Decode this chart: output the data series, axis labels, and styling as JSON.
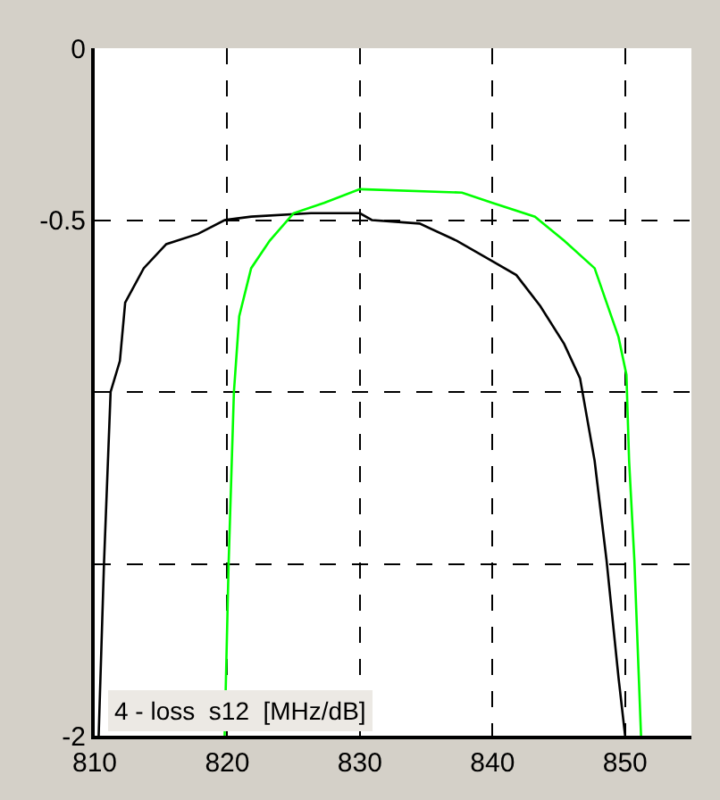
{
  "chart_data": {
    "type": "line",
    "series": [
      {
        "color": "#000000",
        "x": [
          810.3,
          810.7,
          811.2,
          811.9,
          812.3,
          813.7,
          815.4,
          817.8,
          819.8,
          821.8,
          826.3,
          830,
          830.9,
          834.5,
          837.3,
          840,
          841.8,
          843.6,
          845.4,
          846.6,
          847.7,
          848.6,
          849.5,
          850
        ],
        "values": [
          -2,
          -1.5,
          -1,
          -0.91,
          -0.74,
          -0.64,
          -0.57,
          -0.54,
          -0.5,
          -0.49,
          -0.48,
          -0.48,
          -0.5,
          -0.51,
          -0.56,
          -0.62,
          -0.66,
          -0.75,
          -0.86,
          -0.96,
          -1.2,
          -1.49,
          -1.83,
          -2
        ]
      },
      {
        "color": "#00ff00",
        "x": [
          819.8,
          820.1,
          820.5,
          820.9,
          821.8,
          823.2,
          825,
          827.3,
          830,
          837.7,
          840,
          843.2,
          845.4,
          847.7,
          849.5,
          850.1,
          850.3,
          850.7,
          851.2
        ],
        "values": [
          -2,
          -1.5,
          -1,
          -0.78,
          -0.64,
          -0.56,
          -0.48,
          -0.45,
          -0.41,
          -0.42,
          -0.45,
          -0.49,
          -0.56,
          -0.64,
          -0.84,
          -0.95,
          -1.2,
          -1.49,
          -2
        ]
      }
    ],
    "xlim": [
      810,
      855
    ],
    "xticks": [
      810,
      820,
      830,
      840,
      850
    ],
    "ylim": [
      -2,
      0
    ],
    "yticks": [
      0,
      -0.5,
      {
        "value": -1,
        "label": null
      },
      {
        "value": -1.5,
        "label": null
      },
      -2
    ],
    "grid": true,
    "line_style": "solid",
    "marker": "none",
    "annotations": [
      "4 - loss  s12  [MHz/dB]"
    ]
  }
}
